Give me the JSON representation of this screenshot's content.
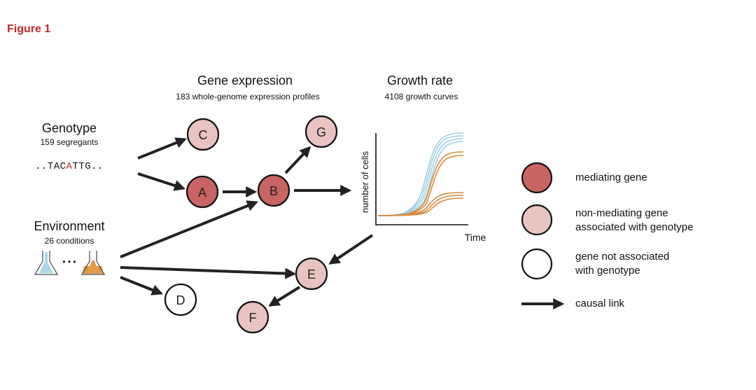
{
  "figure_label": "Figure 1",
  "genotype": {
    "title": "Genotype",
    "subtitle": "159 segregants",
    "sequence_prefix": "..TAC",
    "sequence_highlight": "A",
    "sequence_suffix": "TTG.."
  },
  "environment": {
    "title": "Environment",
    "subtitle": "26 conditions",
    "ellipsis": "• • •"
  },
  "gene_expression": {
    "title": "Gene expression",
    "subtitle": "183 whole-genome expression profiles"
  },
  "growth_rate": {
    "title": "Growth rate",
    "subtitle": "4108 growth curves",
    "ylabel": "number of cells",
    "xlabel": "Time"
  },
  "nodes": {
    "A": "A",
    "B": "B",
    "C": "C",
    "D": "D",
    "E": "E",
    "F": "F",
    "G": "G"
  },
  "legend": {
    "mediating": "mediating gene",
    "non_mediating_line1": "non-mediating gene",
    "non_mediating_line2": "associated with genotype",
    "not_associated_line1": "gene not associated",
    "not_associated_line2": "with genotype",
    "causal": "causal link"
  },
  "colors": {
    "figure_label": "#c0272d",
    "mediating_fill": "#c96464",
    "non_mediating_fill": "#e8c3c1",
    "not_associated_fill": "#ffffff",
    "arrow": "#222222",
    "curve_blue": "#9fcfe0",
    "curve_orange": "#d78a3a",
    "flask_blue": "#a8d8e8",
    "flask_orange": "#e09a48"
  }
}
